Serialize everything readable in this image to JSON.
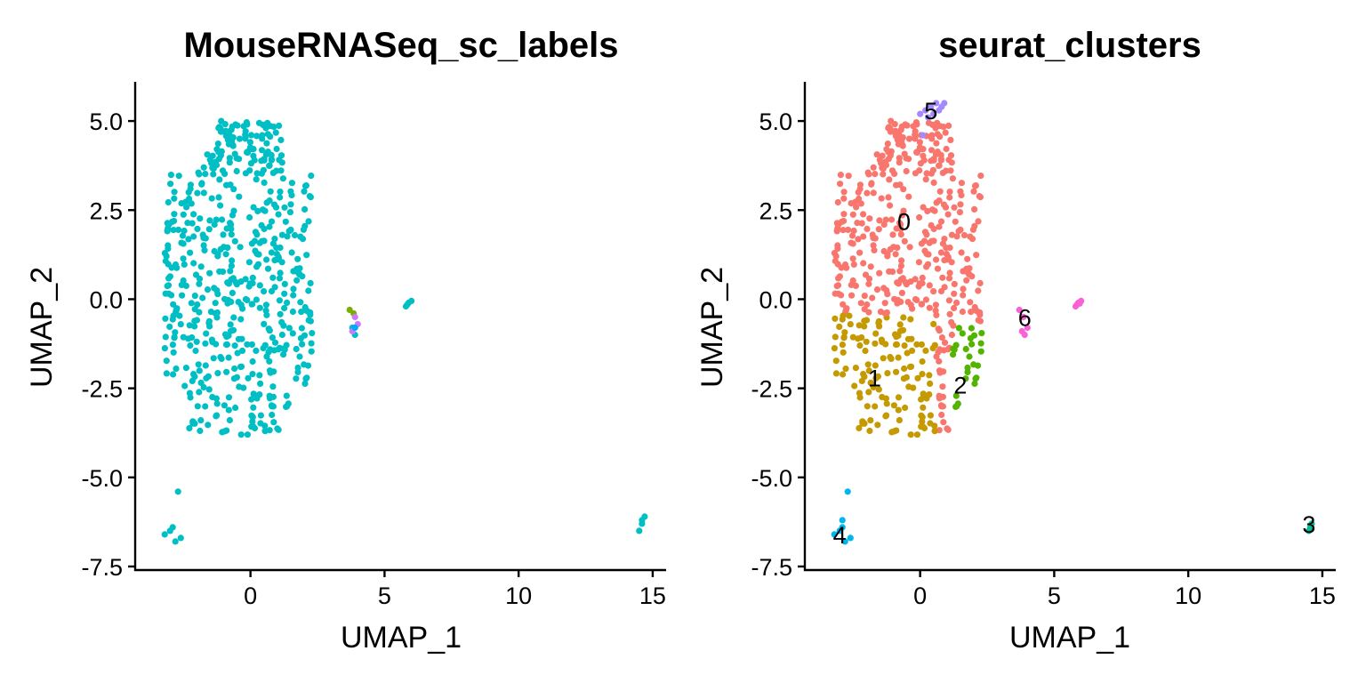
{
  "chart_data": [
    {
      "type": "scatter",
      "title": "MouseRNASeq_sc_labels",
      "xlabel": "UMAP_1",
      "ylabel": "UMAP_2",
      "xlim": [
        -4.3,
        15.5
      ],
      "ylim": [
        -7.6,
        6.1
      ],
      "xticks": [
        0,
        5,
        10,
        15
      ],
      "xtick_labels": [
        "0",
        "5",
        "10",
        "15"
      ],
      "yticks": [
        5.0,
        2.5,
        0.0,
        -2.5,
        -5.0,
        -7.5
      ],
      "ytick_labels": [
        "5.0",
        "2.5",
        "0.0",
        "-2.5",
        "-5.0",
        "-7.5"
      ],
      "grid": false,
      "legend": "none",
      "default_color": "#00BFC4",
      "groups": [
        {
          "color": "#00BFC4",
          "points": [
            [
              -3.2,
              -6.6
            ],
            [
              -2.9,
              -6.4
            ],
            [
              -2.8,
              -6.8
            ],
            [
              -3.0,
              -6.5
            ],
            [
              -2.6,
              -6.7
            ],
            [
              -2.7,
              -5.4
            ],
            [
              14.6,
              -6.3
            ],
            [
              14.7,
              -6.1
            ],
            [
              14.5,
              -6.5
            ],
            [
              14.6,
              -6.2
            ],
            [
              5.8,
              -0.2
            ],
            [
              5.9,
              -0.1
            ],
            [
              6.0,
              -0.05
            ],
            [
              5.85,
              -0.15
            ],
            [
              3.8,
              -0.8
            ],
            [
              3.9,
              -1.0
            ]
          ]
        },
        {
          "color": "#7CAE00",
          "points": [
            [
              3.7,
              -0.3
            ],
            [
              3.85,
              -0.4
            ]
          ]
        },
        {
          "color": "#C77CFF",
          "points": [
            [
              3.8,
              -0.9
            ],
            [
              4.0,
              -0.7
            ],
            [
              3.9,
              -0.5
            ]
          ]
        },
        {
          "color": "#00A9FF",
          "points": [
            [
              3.9,
              -0.8
            ]
          ]
        }
      ]
    },
    {
      "type": "scatter",
      "title": "seurat_clusters",
      "xlabel": "UMAP_1",
      "ylabel": "UMAP_2",
      "xlim": [
        -4.3,
        15.5
      ],
      "ylim": [
        -7.6,
        6.1
      ],
      "xticks": [
        0,
        5,
        10,
        15
      ],
      "xtick_labels": [
        "0",
        "5",
        "10",
        "15"
      ],
      "yticks": [
        5.0,
        2.5,
        0.0,
        -2.5,
        -5.0,
        -7.5
      ],
      "ytick_labels": [
        "5.0",
        "2.5",
        "0.0",
        "-2.5",
        "-5.0",
        "-7.5"
      ],
      "grid": false,
      "legend": "none",
      "clusters": [
        {
          "name": "0",
          "color": "#F8766D",
          "label_at": [
            -0.6,
            2.2
          ]
        },
        {
          "name": "1",
          "color": "#C49A00",
          "label_at": [
            -1.7,
            -2.2
          ]
        },
        {
          "name": "2",
          "color": "#53B400",
          "label_at": [
            1.5,
            -2.4
          ]
        },
        {
          "name": "3",
          "color": "#00C094",
          "label_at": [
            14.5,
            -6.3
          ]
        },
        {
          "name": "4",
          "color": "#00B6EB",
          "label_at": [
            -3.0,
            -6.6
          ]
        },
        {
          "name": "5",
          "color": "#A58AFF",
          "label_at": [
            0.4,
            5.3
          ]
        },
        {
          "name": "6",
          "color": "#FB61D7",
          "label_at": [
            3.9,
            -0.5
          ]
        }
      ],
      "extra_points": [
        {
          "cluster": "3",
          "points": [
            [
              14.5,
              -6.5
            ],
            [
              14.6,
              -6.3
            ],
            [
              14.55,
              -6.4
            ]
          ]
        },
        {
          "cluster": "4",
          "points": [
            [
              -3.2,
              -6.6
            ],
            [
              -2.9,
              -6.4
            ],
            [
              -2.8,
              -6.8
            ],
            [
              -3.0,
              -6.5
            ],
            [
              -2.6,
              -6.7
            ],
            [
              -2.7,
              -5.4
            ],
            [
              -2.9,
              -6.2
            ]
          ]
        },
        {
          "cluster": "5",
          "points": [
            [
              0.0,
              5.2
            ],
            [
              0.2,
              5.3
            ],
            [
              0.4,
              5.4
            ],
            [
              0.6,
              5.5
            ],
            [
              0.8,
              5.4
            ],
            [
              0.3,
              5.1
            ],
            [
              0.1,
              4.6
            ],
            [
              0.7,
              5.3
            ],
            [
              0.5,
              5.2
            ],
            [
              0.9,
              5.5
            ]
          ]
        },
        {
          "cluster": "6",
          "points": [
            [
              3.7,
              -0.3
            ],
            [
              3.8,
              -0.9
            ],
            [
              3.9,
              -1.0
            ],
            [
              4.0,
              -0.8
            ],
            [
              3.85,
              -0.5
            ],
            [
              5.8,
              -0.2
            ],
            [
              5.9,
              -0.1
            ],
            [
              6.0,
              -0.05
            ],
            [
              5.85,
              -0.15
            ],
            [
              5.95,
              -0.12
            ]
          ]
        }
      ]
    }
  ]
}
